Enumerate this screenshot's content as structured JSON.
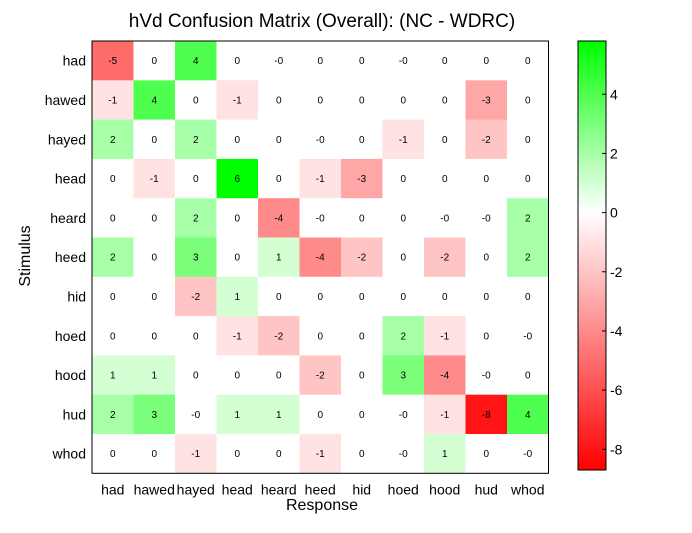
{
  "chart_data": {
    "type": "heatmap",
    "title": "hVd Confusion Matrix (Overall): (NC - WDRC)",
    "xlabel": "Response",
    "ylabel": "Stimulus",
    "x_categories": [
      "had",
      "hawed",
      "hayed",
      "head",
      "heard",
      "heed",
      "hid",
      "hoed",
      "hood",
      "hud",
      "whod"
    ],
    "y_categories": [
      "had",
      "hawed",
      "hayed",
      "head",
      "heard",
      "heed",
      "hid",
      "hoed",
      "hood",
      "hud",
      "whod"
    ],
    "values": [
      [
        -5,
        0,
        4,
        0,
        0,
        0,
        0,
        0,
        0,
        0,
        0
      ],
      [
        -1,
        4,
        0,
        -1,
        0,
        0,
        0,
        0,
        0,
        -3,
        0
      ],
      [
        2,
        0,
        2,
        0,
        0,
        0,
        0,
        -1,
        0,
        -2,
        0
      ],
      [
        0,
        -1,
        0,
        6,
        0,
        -1,
        -3,
        0,
        0,
        0,
        0
      ],
      [
        0,
        0,
        2,
        0,
        -4,
        0,
        0,
        0,
        0,
        0,
        2
      ],
      [
        2,
        0,
        3,
        0,
        1,
        -4,
        -2,
        0,
        -2,
        0,
        2
      ],
      [
        0,
        0,
        -2,
        1,
        0,
        0,
        0,
        0,
        0,
        0,
        0
      ],
      [
        0,
        0,
        0,
        -1,
        -2,
        0,
        0,
        2,
        -1,
        0,
        0
      ],
      [
        1,
        1,
        0,
        0,
        0,
        -2,
        0,
        3,
        -4,
        0,
        0
      ],
      [
        2,
        3,
        0,
        1,
        1,
        0,
        0,
        0,
        -1,
        -8,
        4
      ],
      [
        0,
        0,
        -1,
        0,
        0,
        -1,
        0,
        0,
        1,
        0,
        0
      ]
    ],
    "cell_labels": [
      [
        "-5",
        "0",
        "4",
        "0",
        "-0",
        "0",
        "0",
        "-0",
        "0",
        "0",
        "0"
      ],
      [
        "-1",
        "4",
        "0",
        "-1",
        "0",
        "0",
        "0",
        "0",
        "0",
        "-3",
        "0"
      ],
      [
        "2",
        "0",
        "2",
        "0",
        "0",
        "-0",
        "0",
        "-1",
        "0",
        "-2",
        "0"
      ],
      [
        "0",
        "-1",
        "0",
        "6",
        "0",
        "-1",
        "-3",
        "0",
        "0",
        "0",
        "0"
      ],
      [
        "0",
        "0",
        "2",
        "0",
        "-4",
        "-0",
        "0",
        "0",
        "-0",
        "-0",
        "2"
      ],
      [
        "2",
        "0",
        "3",
        "0",
        "1",
        "-4",
        "-2",
        "0",
        "-2",
        "0",
        "2"
      ],
      [
        "0",
        "0",
        "-2",
        "1",
        "0",
        "0",
        "0",
        "0",
        "0",
        "0",
        "0"
      ],
      [
        "0",
        "0",
        "0",
        "-1",
        "-2",
        "0",
        "0",
        "2",
        "-1",
        "0",
        "-0"
      ],
      [
        "1",
        "1",
        "0",
        "0",
        "0",
        "-2",
        "0",
        "3",
        "-4",
        "-0",
        "0"
      ],
      [
        "2",
        "3",
        "-0",
        "1",
        "1",
        "0",
        "0",
        "-0",
        "-1",
        "-8",
        "4"
      ],
      [
        "0",
        "0",
        "-1",
        "0",
        "0",
        "-1",
        "0",
        "-0",
        "1",
        "0",
        "-0"
      ]
    ],
    "colorbar": {
      "min": -8.7,
      "max": 5.8,
      "ticks": [
        4,
        2,
        0,
        -2,
        -4,
        -6,
        -8
      ],
      "tick_labels": [
        "4",
        "2",
        "0",
        "-2",
        "-4",
        "-6",
        "-8"
      ],
      "colors": {
        "negative": "#ff0000",
        "zero": "#ffffff",
        "positive": "#00ff00"
      }
    }
  }
}
